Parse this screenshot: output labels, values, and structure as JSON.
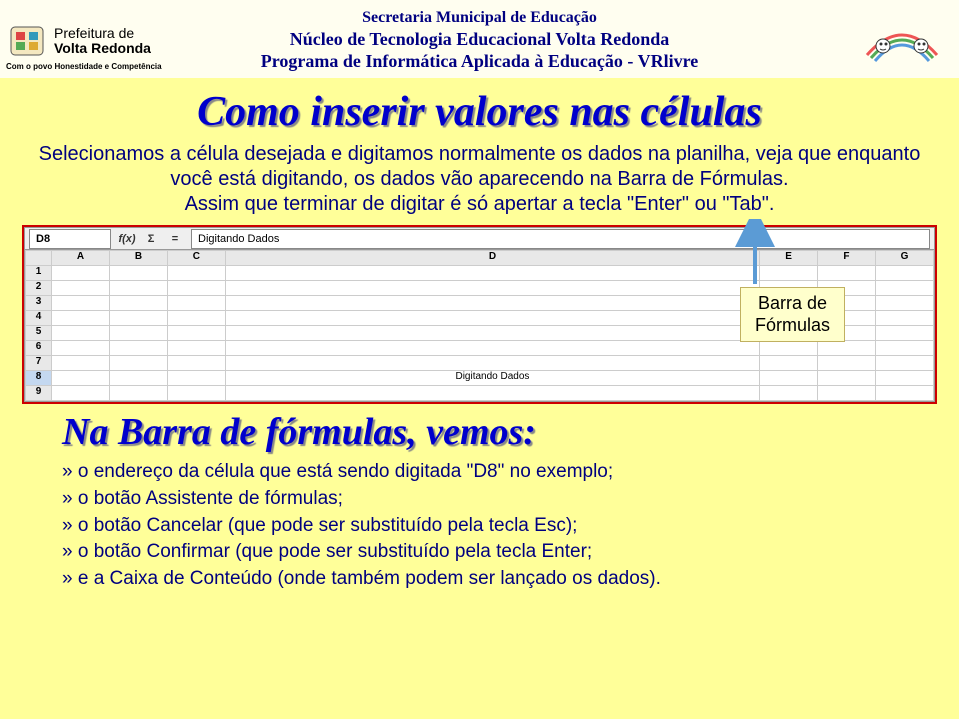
{
  "header": {
    "logo_left": {
      "line1": "Prefeitura de",
      "line2": "Volta Redonda",
      "tagline": "Com o povo Honestidade e Competência"
    },
    "line1": "Secretaria Municipal de Educação",
    "line2": "Núcleo de Tecnologia Educacional Volta Redonda",
    "line3": "Programa de Informática Aplicada à Educação - VRlivre"
  },
  "title": "Como inserir valores nas células",
  "paragraph": "Selecionamos a célula desejada e digitamos normalmente os dados na planilha, veja que enquanto você está digitando, os dados vão aparecendo na Barra de Fórmulas.\nAssim que terminar de digitar é só apertar a tecla \"Enter\" ou \"Tab\".",
  "spreadsheet": {
    "cell_ref": "D8",
    "fx_label": "f(x)",
    "sigma_label": "Σ",
    "eq_label": "=",
    "formula_input": "Digitando Dados",
    "columns": [
      "A",
      "B",
      "C",
      "D",
      "E",
      "F",
      "G"
    ],
    "rows": [
      "1",
      "2",
      "3",
      "4",
      "5",
      "6",
      "7",
      "8",
      "9"
    ],
    "typing_cell": {
      "row": 8,
      "col": "D",
      "value": "Digitando Dados"
    },
    "colors": {
      "highlight_border": "#cc0000",
      "header_bg": "#e8e8e8",
      "cell_border": "#cccccc"
    }
  },
  "callout": {
    "line1": "Barra de",
    "line2": "Fórmulas",
    "arrow_color": "#5b9bd5"
  },
  "subtitle": "Na Barra de fórmulas, vemos:",
  "bullets": [
    "» o endereço da célula que está sendo digitada \"D8\" no exemplo;",
    "» o botão Assistente de fórmulas;",
    "» o botão Cancelar (que pode ser substituído pela tecla Esc);",
    "» o botão Confirmar (que pode ser substituído pela tecla Enter;",
    "» e a Caixa de Conteúdo (onde também podem ser lançado os dados)."
  ],
  "style": {
    "page_bg": "#ffff99",
    "title_color": "#0000cc",
    "body_text_color": "#000080",
    "callout_bg": "#ffffcc",
    "callout_border": "#c0b060"
  }
}
